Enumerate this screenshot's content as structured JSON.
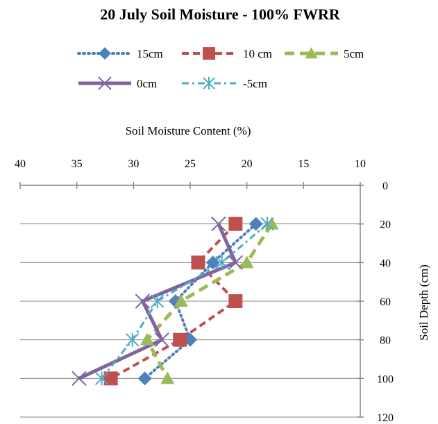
{
  "chart_data": {
    "type": "line",
    "title": "20 July Soil Moisture - 100% FWRR",
    "xlabel": "Soil Moisture Content (%)",
    "ylabel": "Soil Depth (cm)",
    "xlim": [
      40,
      10
    ],
    "x_reversed": true,
    "x_axis_position": "top",
    "ylim": [
      0,
      120
    ],
    "y_reversed": true,
    "y_axis_position": "right",
    "x_ticks": [
      "40",
      "35",
      "30",
      "25",
      "20",
      "15",
      "10"
    ],
    "y_ticks": [
      "0",
      "20",
      "40",
      "60",
      "80",
      "100",
      "120"
    ],
    "grid": "horizontal",
    "legend_position": "top",
    "series": [
      {
        "name": "15cm",
        "color": "#4f81bd",
        "line_style": "dotted",
        "marker": "diamond",
        "points": [
          {
            "x": 19.2,
            "y": 20
          },
          {
            "x": 23.0,
            "y": 40
          },
          {
            "x": 26.3,
            "y": 60
          },
          {
            "x": 25.0,
            "y": 80
          },
          {
            "x": 29.0,
            "y": 100
          }
        ]
      },
      {
        "name": "10 cm",
        "color": "#c0504d",
        "line_style": "dashed",
        "marker": "square",
        "points": [
          {
            "x": 21.0,
            "y": 20
          },
          {
            "x": 24.3,
            "y": 40
          },
          {
            "x": 21.0,
            "y": 60
          },
          {
            "x": 25.9,
            "y": 80
          },
          {
            "x": 32.0,
            "y": 100
          }
        ]
      },
      {
        "name": "5cm",
        "color": "#9bbb59",
        "line_style": "long-dash",
        "marker": "triangle",
        "points": [
          {
            "x": 17.8,
            "y": 20
          },
          {
            "x": 20.0,
            "y": 40
          },
          {
            "x": 25.8,
            "y": 60
          },
          {
            "x": 28.8,
            "y": 80
          },
          {
            "x": 27.0,
            "y": 100
          }
        ]
      },
      {
        "name": "0cm",
        "color": "#8064a2",
        "line_style": "solid",
        "marker": "x",
        "points": [
          {
            "x": 22.5,
            "y": 20
          },
          {
            "x": 21.0,
            "y": 40
          },
          {
            "x": 29.2,
            "y": 60
          },
          {
            "x": 27.5,
            "y": 80
          },
          {
            "x": 34.8,
            "y": 100
          }
        ]
      },
      {
        "name": "-5cm",
        "color": "#4bacc6",
        "line_style": "dash-dot",
        "marker": "star",
        "points": [
          {
            "x": 18.2,
            "y": 20
          },
          {
            "x": 22.2,
            "y": 40
          },
          {
            "x": 27.9,
            "y": 60
          },
          {
            "x": 30.1,
            "y": 80
          },
          {
            "x": 32.8,
            "y": 100
          }
        ]
      }
    ]
  }
}
